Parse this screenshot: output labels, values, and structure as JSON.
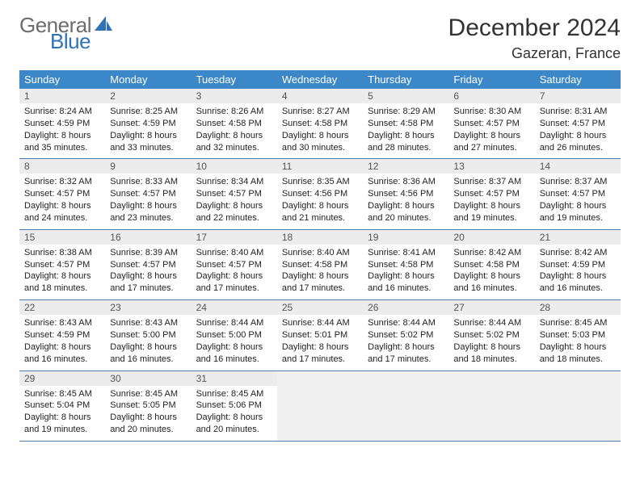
{
  "logo": {
    "word1": "General",
    "word2": "Blue",
    "word1_color": "#6c6c6c",
    "word2_color": "#2f72b5"
  },
  "title": "December 2024",
  "location": "Gazeran, France",
  "colors": {
    "header_bg": "#3b87c8",
    "header_text": "#ffffff",
    "daynum_bg": "#ececec",
    "row_border": "#4a7db3",
    "page_bg": "#ffffff"
  },
  "day_headers": [
    "Sunday",
    "Monday",
    "Tuesday",
    "Wednesday",
    "Thursday",
    "Friday",
    "Saturday"
  ],
  "sunrise_label": "Sunrise:",
  "sunset_label": "Sunset:",
  "daylight_label": "Daylight:",
  "days": [
    {
      "n": 1,
      "sunrise": "8:24 AM",
      "sunset": "4:59 PM",
      "daylight": "8 hours and 35 minutes."
    },
    {
      "n": 2,
      "sunrise": "8:25 AM",
      "sunset": "4:59 PM",
      "daylight": "8 hours and 33 minutes."
    },
    {
      "n": 3,
      "sunrise": "8:26 AM",
      "sunset": "4:58 PM",
      "daylight": "8 hours and 32 minutes."
    },
    {
      "n": 4,
      "sunrise": "8:27 AM",
      "sunset": "4:58 PM",
      "daylight": "8 hours and 30 minutes."
    },
    {
      "n": 5,
      "sunrise": "8:29 AM",
      "sunset": "4:58 PM",
      "daylight": "8 hours and 28 minutes."
    },
    {
      "n": 6,
      "sunrise": "8:30 AM",
      "sunset": "4:57 PM",
      "daylight": "8 hours and 27 minutes."
    },
    {
      "n": 7,
      "sunrise": "8:31 AM",
      "sunset": "4:57 PM",
      "daylight": "8 hours and 26 minutes."
    },
    {
      "n": 8,
      "sunrise": "8:32 AM",
      "sunset": "4:57 PM",
      "daylight": "8 hours and 24 minutes."
    },
    {
      "n": 9,
      "sunrise": "8:33 AM",
      "sunset": "4:57 PM",
      "daylight": "8 hours and 23 minutes."
    },
    {
      "n": 10,
      "sunrise": "8:34 AM",
      "sunset": "4:57 PM",
      "daylight": "8 hours and 22 minutes."
    },
    {
      "n": 11,
      "sunrise": "8:35 AM",
      "sunset": "4:56 PM",
      "daylight": "8 hours and 21 minutes."
    },
    {
      "n": 12,
      "sunrise": "8:36 AM",
      "sunset": "4:56 PM",
      "daylight": "8 hours and 20 minutes."
    },
    {
      "n": 13,
      "sunrise": "8:37 AM",
      "sunset": "4:57 PM",
      "daylight": "8 hours and 19 minutes."
    },
    {
      "n": 14,
      "sunrise": "8:37 AM",
      "sunset": "4:57 PM",
      "daylight": "8 hours and 19 minutes."
    },
    {
      "n": 15,
      "sunrise": "8:38 AM",
      "sunset": "4:57 PM",
      "daylight": "8 hours and 18 minutes."
    },
    {
      "n": 16,
      "sunrise": "8:39 AM",
      "sunset": "4:57 PM",
      "daylight": "8 hours and 17 minutes."
    },
    {
      "n": 17,
      "sunrise": "8:40 AM",
      "sunset": "4:57 PM",
      "daylight": "8 hours and 17 minutes."
    },
    {
      "n": 18,
      "sunrise": "8:40 AM",
      "sunset": "4:58 PM",
      "daylight": "8 hours and 17 minutes."
    },
    {
      "n": 19,
      "sunrise": "8:41 AM",
      "sunset": "4:58 PM",
      "daylight": "8 hours and 16 minutes."
    },
    {
      "n": 20,
      "sunrise": "8:42 AM",
      "sunset": "4:58 PM",
      "daylight": "8 hours and 16 minutes."
    },
    {
      "n": 21,
      "sunrise": "8:42 AM",
      "sunset": "4:59 PM",
      "daylight": "8 hours and 16 minutes."
    },
    {
      "n": 22,
      "sunrise": "8:43 AM",
      "sunset": "4:59 PM",
      "daylight": "8 hours and 16 minutes."
    },
    {
      "n": 23,
      "sunrise": "8:43 AM",
      "sunset": "5:00 PM",
      "daylight": "8 hours and 16 minutes."
    },
    {
      "n": 24,
      "sunrise": "8:44 AM",
      "sunset": "5:00 PM",
      "daylight": "8 hours and 16 minutes."
    },
    {
      "n": 25,
      "sunrise": "8:44 AM",
      "sunset": "5:01 PM",
      "daylight": "8 hours and 17 minutes."
    },
    {
      "n": 26,
      "sunrise": "8:44 AM",
      "sunset": "5:02 PM",
      "daylight": "8 hours and 17 minutes."
    },
    {
      "n": 27,
      "sunrise": "8:44 AM",
      "sunset": "5:02 PM",
      "daylight": "8 hours and 18 minutes."
    },
    {
      "n": 28,
      "sunrise": "8:45 AM",
      "sunset": "5:03 PM",
      "daylight": "8 hours and 18 minutes."
    },
    {
      "n": 29,
      "sunrise": "8:45 AM",
      "sunset": "5:04 PM",
      "daylight": "8 hours and 19 minutes."
    },
    {
      "n": 30,
      "sunrise": "8:45 AM",
      "sunset": "5:05 PM",
      "daylight": "8 hours and 20 minutes."
    },
    {
      "n": 31,
      "sunrise": "8:45 AM",
      "sunset": "5:06 PM",
      "daylight": "8 hours and 20 minutes."
    }
  ],
  "layout": {
    "first_weekday_index": 0,
    "trailing_pad": 4
  }
}
